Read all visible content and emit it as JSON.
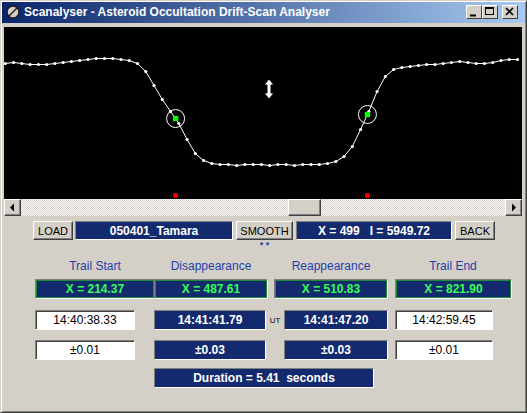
{
  "window": {
    "title": "Scanalyser - Asteroid Occultation Drift-Scan Analyser"
  },
  "chart_data": {
    "type": "line",
    "x": [
      467,
      468,
      469,
      470,
      471,
      472,
      473,
      474,
      475,
      476,
      477,
      478,
      479,
      480,
      481,
      482,
      483,
      484,
      485,
      486,
      487,
      488,
      489,
      490,
      491,
      492,
      493,
      494,
      495,
      496,
      497,
      498,
      499,
      500,
      501,
      502,
      503,
      504,
      505,
      506,
      507,
      508,
      509,
      510,
      511,
      512,
      513,
      514,
      515,
      516,
      517,
      518,
      519,
      520,
      521,
      522,
      523,
      524,
      525,
      526,
      527,
      528,
      529
    ],
    "values": [
      136,
      137,
      136,
      135,
      135,
      135,
      136,
      137,
      138,
      139,
      140,
      141,
      141,
      141,
      140,
      139,
      136,
      128,
      114,
      100,
      88,
      76,
      60,
      46,
      39,
      36,
      35,
      35,
      34,
      35,
      35,
      35,
      34,
      35,
      35,
      34,
      35,
      35,
      35,
      36,
      38,
      43,
      53,
      70,
      88,
      108,
      123,
      130,
      132,
      133,
      134,
      135,
      135,
      136,
      137,
      138,
      137,
      136,
      136,
      137,
      139,
      140,
      140
    ],
    "color": "#ffffff",
    "marker": "dot",
    "xlim": [
      466.9,
      529.6
    ],
    "ylim": [
      0,
      172
    ],
    "tick_labels": false,
    "events": [
      487.61,
      510.83
    ],
    "event_values": [
      81,
      85
    ],
    "cursor": {
      "x": 499,
      "y": 110
    }
  },
  "toolbar": {
    "load": "LOAD",
    "file": "050401_Tamara",
    "smooth": "SMOOTH",
    "smooth_flag": "* *",
    "status": "X = 499   I = 5949.72",
    "back": "BACK"
  },
  "table": {
    "headers": [
      "Trail Start",
      "Disappearance",
      "Reappearance",
      "Trail End"
    ],
    "rows": [
      [
        "X = 214.37",
        "X = 487.61",
        "X = 510.83",
        "X = 821.90"
      ],
      [
        "14:40:38.33",
        "14:41:41.79",
        "14:41:47.20",
        "14:42:59.45"
      ],
      [
        "±0.01",
        "±0.03",
        "±0.03",
        "±0.01"
      ]
    ],
    "ut": "UT",
    "duration": "Duration = 5.41  seconds"
  }
}
